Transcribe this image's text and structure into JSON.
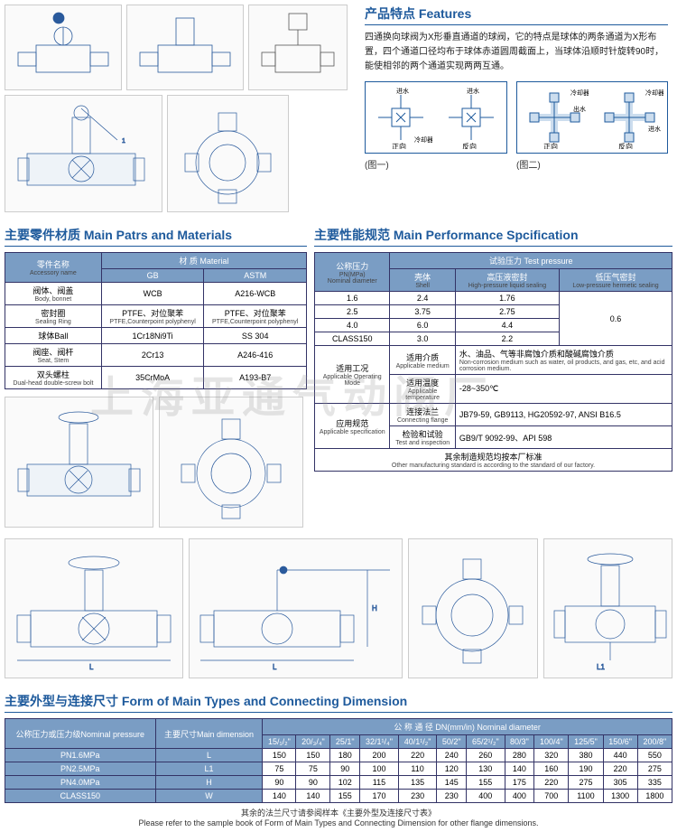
{
  "features": {
    "title": "产品特点 Features",
    "text": "四通换向球阀为X形垂直通道的球阀，它的特点是球体的两条通道为X形布置，四个通道口径均布于球体赤道圆周截面上，当球体沿顺时针旋转90时，能使相邻的两个通道实现两两互通。"
  },
  "flow_labels": {
    "jin": "进水",
    "chu": "出水",
    "leng": "冷却器",
    "zheng": "正向",
    "fan": "反向",
    "fig1": "(图一)",
    "fig2": "(图二)"
  },
  "parts": {
    "title": "主要零件材质  Main Patrs and Materials",
    "h1": "零件名称",
    "h1_sub": "Accessory name",
    "h2": "材 质 Material",
    "gb": "GB",
    "astm": "ASTM",
    "rows": [
      {
        "name": "阀体、阀盖",
        "sub": "Body, bonnet",
        "gb": "WCB",
        "astm": "A216-WCB"
      },
      {
        "name": "密封圈",
        "sub": "Sealing Ring",
        "gb": "PTFE、对位聚苯",
        "gbsub": "PTFE,Counterpoint polyphenyl",
        "astm": "PTFE、对位聚苯",
        "astmsub": "PTFE,Counterpoint polyphenyl"
      },
      {
        "name": "球体Ball",
        "sub": "",
        "gb": "1Cr18Ni9Ti",
        "astm": "SS 304"
      },
      {
        "name": "阀座、阀杆",
        "sub": "Seat, Stem",
        "gb": "2Cr13",
        "astm": "A246-416"
      },
      {
        "name": "双头螺柱",
        "sub": "Dual-head double-screw bolt",
        "gb": "35CrMoA",
        "astm": "A193-B7"
      }
    ]
  },
  "perf": {
    "title": "主要性能规范  Main Performance Spcification",
    "h_pn": "公称压力",
    "h_pn_sub": "PN(MPa)",
    "h_pn_sub2": "Nominal diameter",
    "h_test": "试验压力 Test pressure",
    "h_shell": "壳体",
    "h_shell_sub": "Shell",
    "h_hi": "高压液密封",
    "h_hi_sub": "High-pressure liquid sealing",
    "h_lo": "低压气密封",
    "h_lo_sub": "Low-pressure hermetic sealing",
    "rows": [
      {
        "pn": "1.6",
        "shell": "2.4",
        "hi": "1.76"
      },
      {
        "pn": "2.5",
        "shell": "3.75",
        "hi": "2.75"
      },
      {
        "pn": "4.0",
        "shell": "6.0",
        "hi": "4.4"
      },
      {
        "pn": "CLASS150",
        "shell": "3.0",
        "hi": "2.2"
      }
    ],
    "lo_merged": "0.6",
    "app_rows": [
      {
        "l1": "适用工况",
        "l1sub": "Applicable Operating Mode",
        "l2": "适用介质",
        "l2sub": "Applicable medium",
        "v": "水、油品、气等非腐蚀介质和酸碱腐蚀介质",
        "vsub": "Non-corrosion medium such as water, oil products, and gas, etc, and acid corrosion medium."
      },
      {
        "l1": "",
        "l2": "适用温度",
        "l2sub": "Applicable temperature",
        "v": "-28~350℃"
      },
      {
        "l1": "应用规范",
        "l1sub": "Applicable specification",
        "l2": "连接法兰",
        "l2sub": "Connecting flange",
        "v": "JB79-59, GB9113, HG20592-97, ANSI B16.5"
      },
      {
        "l1": "",
        "l2": "检验和试验",
        "l2sub": "Test and inspection",
        "v": "GB9/T 9092-99、API 598"
      }
    ],
    "footer": "其余制造规范均按本厂标准",
    "footer_sub": "Other manufacturing standard is according to the standard of our factory."
  },
  "dim": {
    "title": "主要外型与连接尺寸  Form of Main Types and Connecting Dimension",
    "h_pn": "公称压力或压力级",
    "h_pn_sub": "Nominal pressure",
    "h_main": "主要尺寸",
    "h_main_sub": "Main dimension",
    "h_dn": "公 称 通 径   DN(mm/in)   Nominal diameter",
    "cols": [
      "15/₁/₂\"",
      "20/₃/₄\"",
      "25/1\"",
      "32/1¹/₄\"",
      "40/1¹/₂\"",
      "50/2\"",
      "65/2¹/₂\"",
      "80/3\"",
      "100/4\"",
      "125/5\"",
      "150/6\"",
      "200/8\""
    ],
    "rows": [
      {
        "pn": "PN1.6MPa",
        "dim": "L",
        "v": [
          "150",
          "150",
          "180",
          "200",
          "220",
          "240",
          "260",
          "280",
          "320",
          "380",
          "440",
          "550"
        ]
      },
      {
        "pn": "PN2.5MPa",
        "dim": "L1",
        "v": [
          "75",
          "75",
          "90",
          "100",
          "110",
          "120",
          "130",
          "140",
          "160",
          "190",
          "220",
          "275"
        ]
      },
      {
        "pn": "PN4.0MPa",
        "dim": "H",
        "v": [
          "90",
          "90",
          "102",
          "115",
          "135",
          "145",
          "155",
          "175",
          "220",
          "275",
          "305",
          "335"
        ]
      },
      {
        "pn": "CLASS150",
        "dim": "W",
        "v": [
          "140",
          "140",
          "155",
          "170",
          "230",
          "230",
          "400",
          "400",
          "700",
          "1100",
          "1300",
          "1800"
        ]
      }
    ],
    "footer": "其余的法兰尺寸请参阅样本《主要外型及连接尺寸表》",
    "footer_sub": "Please refer to the sample book of Form of Main Types and Connecting Dimension for other flange dimensions."
  },
  "watermark": "上海亚通气动阀厂"
}
